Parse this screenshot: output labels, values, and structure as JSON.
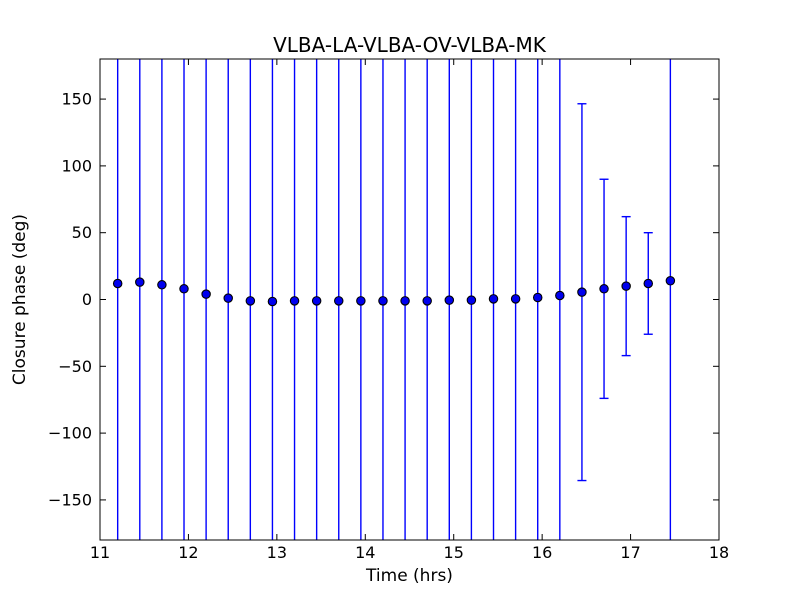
{
  "figure": {
    "background": "#ffffff",
    "title": "VLBA-LA-VLBA-OV-VLBA-MK"
  },
  "chart_data": {
    "type": "scatter",
    "title": "VLBA-LA-VLBA-OV-VLBA-MK",
    "xlabel": "Time (hrs)",
    "ylabel": "Closure phase (deg)",
    "xlim": [
      11,
      18
    ],
    "ylim": [
      -180,
      180
    ],
    "xticks": [
      11,
      12,
      13,
      14,
      15,
      16,
      17,
      18
    ],
    "xtick_labels": [
      "11",
      "12",
      "13",
      "14",
      "15",
      "16",
      "17",
      "18"
    ],
    "yticks": [
      -150,
      -100,
      -50,
      0,
      50,
      100,
      150
    ],
    "ytick_labels": [
      "−150",
      "−100",
      "−50",
      "0",
      "50",
      "100",
      "150"
    ],
    "grid": false,
    "legend": null,
    "marker": "o",
    "colors": {
      "errorbar": "#0000ff",
      "marker_face": "#0000ee",
      "marker_edge": "#000000",
      "frame": "#000000",
      "text": "#000000"
    },
    "series": [
      {
        "name": "closure phase",
        "x": [
          11.2,
          11.45,
          11.7,
          11.95,
          12.2,
          12.45,
          12.7,
          12.95,
          13.2,
          13.45,
          13.7,
          13.95,
          14.2,
          14.45,
          14.7,
          14.95,
          15.2,
          15.45,
          15.7,
          15.95,
          16.2,
          16.45,
          16.7,
          16.95,
          17.2,
          17.45
        ],
        "y": [
          12,
          13,
          11,
          8,
          4,
          1,
          -1,
          -1.5,
          -1,
          -1,
          -1,
          -1,
          -1,
          -1,
          -1,
          -0.5,
          -0.5,
          0.5,
          0.5,
          1.5,
          3,
          5.5,
          8,
          10,
          12,
          14
        ],
        "yerr": [
          null,
          null,
          null,
          null,
          null,
          null,
          null,
          null,
          null,
          null,
          null,
          null,
          null,
          null,
          null,
          null,
          null,
          null,
          null,
          null,
          null,
          141,
          82,
          52,
          38,
          null
        ],
        "yerr_encoding": "null = error bar exceeds plotted y-range and is clipped at the axes (no caps drawn)"
      }
    ]
  }
}
